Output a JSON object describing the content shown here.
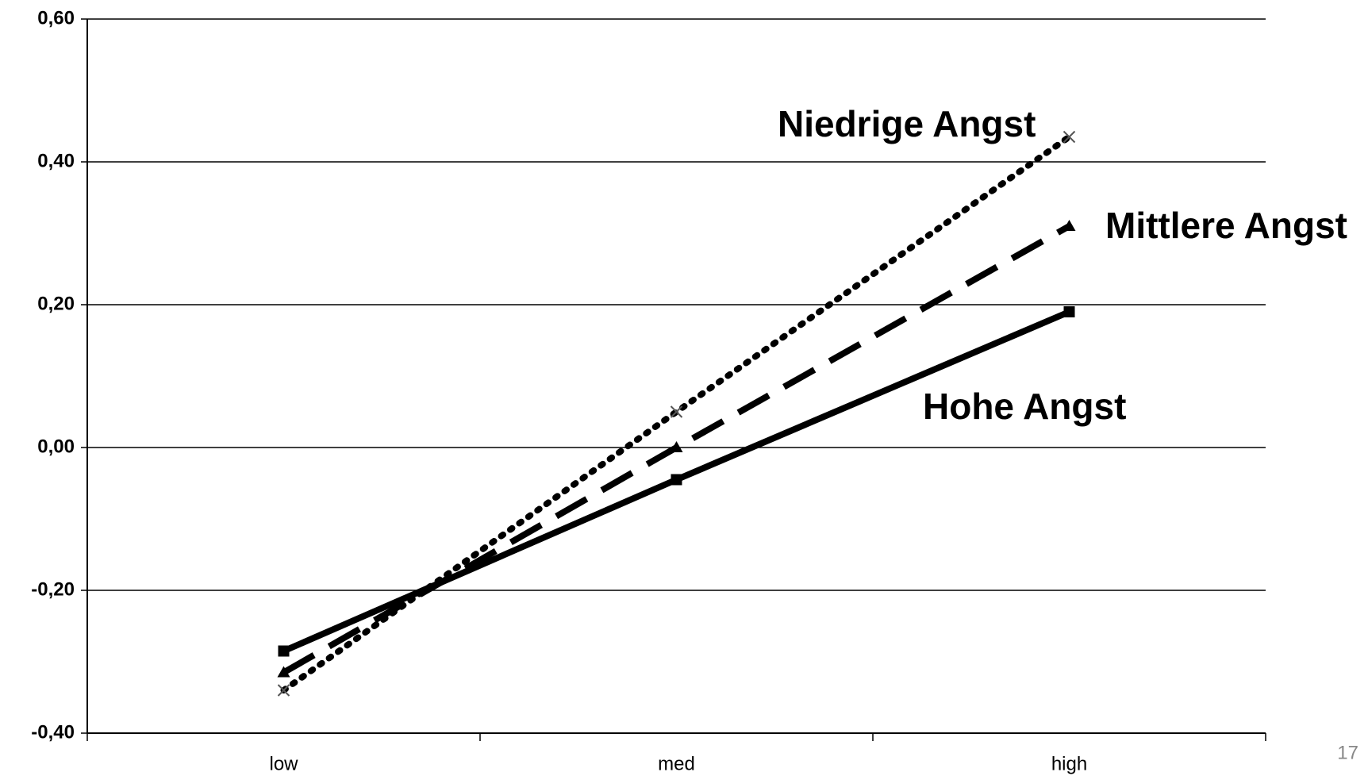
{
  "chart_data": {
    "type": "line",
    "categories": [
      "low",
      "med",
      "high"
    ],
    "series": [
      {
        "name": "Niedrige Angst",
        "color": "#000000",
        "line_style": "dotted",
        "marker": "x",
        "values": [
          -0.34,
          0.05,
          0.435
        ]
      },
      {
        "name": "Mittlere Angst",
        "color": "#000000",
        "line_style": "dashed",
        "marker": "triangle",
        "values": [
          -0.315,
          0.0,
          0.31
        ]
      },
      {
        "name": "Hohe Angst",
        "color": "#000000",
        "line_style": "solid",
        "marker": "square",
        "values": [
          -0.285,
          -0.045,
          0.19
        ]
      }
    ],
    "ylim": [
      -0.4,
      0.6
    ],
    "yticks": [
      {
        "value": -0.4,
        "label": "-0,40"
      },
      {
        "value": -0.2,
        "label": "-0,20"
      },
      {
        "value": 0,
        "label": "0,00"
      },
      {
        "value": 0.2,
        "label": "0,20"
      },
      {
        "value": 0.4,
        "label": "0,40"
      },
      {
        "value": 0.6,
        "label": "0,60"
      }
    ],
    "grid": true,
    "page_number": "17"
  }
}
